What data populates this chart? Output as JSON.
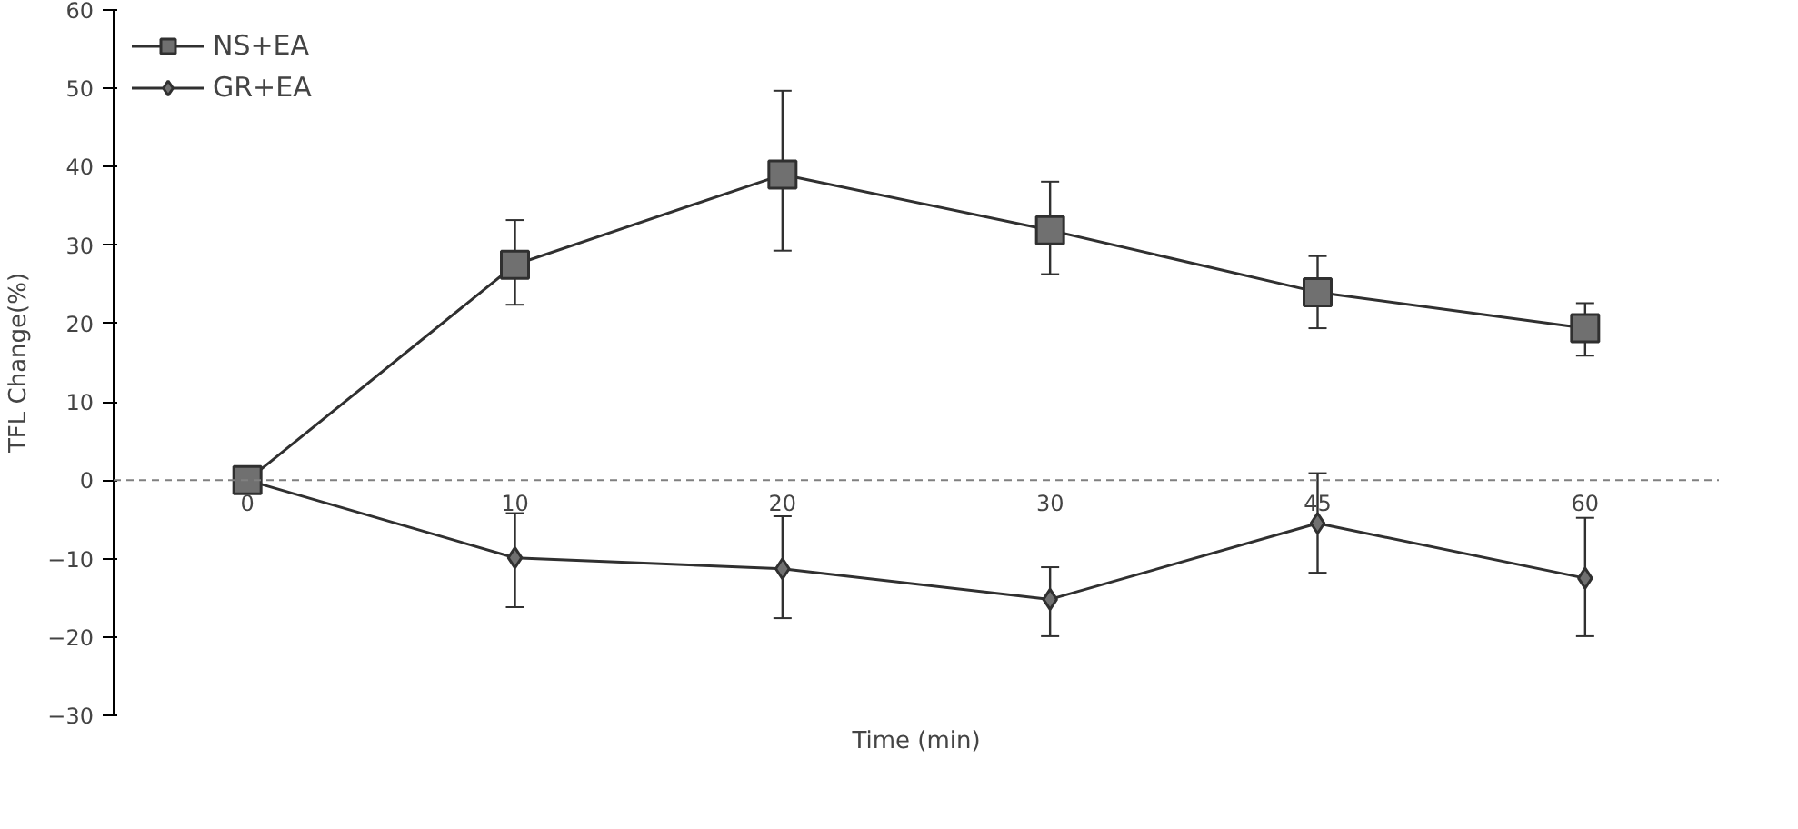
{
  "chart_data": {
    "type": "line",
    "xlabel": "Time (min)",
    "ylabel": "TFL Change(%)",
    "categories": [
      "0",
      "10",
      "20",
      "30",
      "45",
      "60"
    ],
    "series": [
      {
        "name": "NS+EA",
        "color": "#303030",
        "marker": "square",
        "values": [
          0,
          27.5,
          39,
          31.9,
          24,
          19.4
        ],
        "errors": [
          null,
          [
            22.4,
            33.2
          ],
          [
            29.3,
            49.7
          ],
          [
            26.3,
            38.1
          ],
          [
            19.4,
            28.6
          ],
          [
            15.9,
            22.6
          ]
        ]
      },
      {
        "name": "GR+EA",
        "color": "#303030",
        "marker": "diamond",
        "values": [
          0,
          -9.9,
          -11.3,
          -15.2,
          -5.5,
          -12.5
        ],
        "errors": [
          null,
          [
            -16.2,
            -4.2
          ],
          [
            -17.6,
            -4.6
          ],
          [
            -19.9,
            -11.1
          ],
          [
            -11.8,
            0.9
          ],
          [
            -19.9,
            -4.8
          ]
        ]
      }
    ],
    "ylim": [
      -30,
      60
    ],
    "yticks": [
      -30,
      -20,
      -10,
      0,
      10,
      20,
      30,
      40,
      50,
      60
    ],
    "ref_lines": [
      {
        "axis": "y",
        "value": 0,
        "line_style": "dashed",
        "color": "#808080"
      }
    ],
    "legend": "top left",
    "grid": false
  }
}
